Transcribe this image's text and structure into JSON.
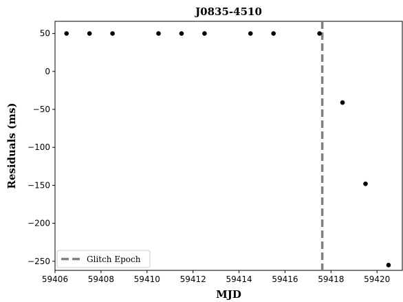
{
  "chart_data": {
    "type": "scatter",
    "title": "J0835-4510",
    "xlabel": "MJD",
    "ylabel": "Residuals (ms)",
    "xlim": [
      59406.0,
      59421.1
    ],
    "ylim": [
      -262,
      66
    ],
    "xticks": [
      59406,
      59408,
      59410,
      59412,
      59414,
      59416,
      59418,
      59420
    ],
    "xtick_labels": [
      "59406",
      "59408",
      "59410",
      "59412",
      "59414",
      "59416",
      "59418",
      "59420"
    ],
    "yticks": [
      50,
      0,
      -50,
      -100,
      -150,
      -200,
      -250
    ],
    "ytick_labels": [
      "50",
      "0",
      "−50",
      "−100",
      "−150",
      "−200",
      "−250"
    ],
    "grid": false,
    "series": [
      {
        "x": [
          59406.5,
          59407.5,
          59408.5,
          59410.5,
          59411.5,
          59412.5,
          59414.5,
          59415.5,
          59417.5,
          59418.5,
          59419.5,
          59420.5
        ],
        "y": [
          50,
          50,
          50,
          50,
          50,
          50,
          50,
          50,
          50,
          -41,
          -148,
          -255
        ],
        "color": "#000000"
      }
    ],
    "vline": {
      "x": 59417.62,
      "label": "Glitch Epoch",
      "color": "#808080",
      "style": "dashed"
    },
    "legend": {
      "position": "lower-left",
      "entries": [
        "Glitch Epoch"
      ]
    }
  }
}
